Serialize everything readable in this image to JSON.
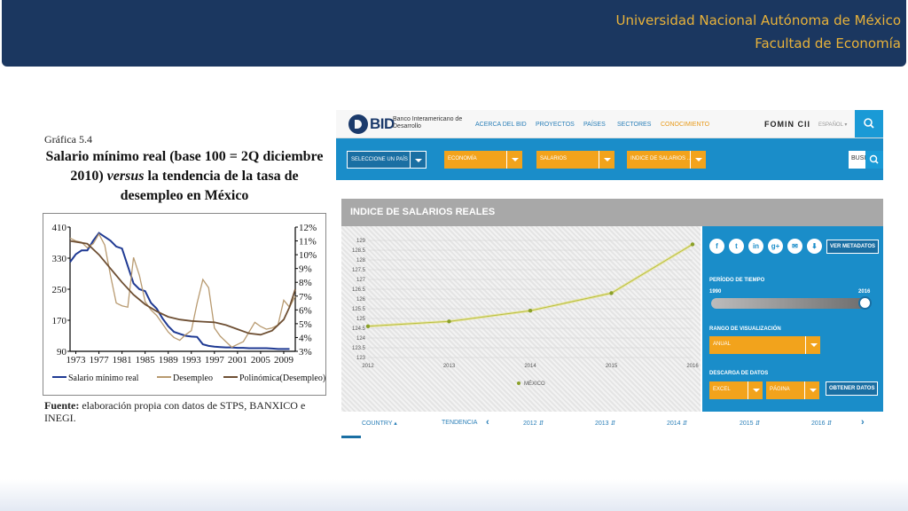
{
  "banner": {
    "line1": "Universidad Nacional Autónoma de México",
    "line2": "Facultad de Economía"
  },
  "figure": {
    "number": "Gráfica 5.4",
    "title_part1": "Salario mínimo real (base 100 = 2Q diciembre 2010)",
    "title_italic": "versus",
    "title_part2": "la tendencia de la tasa de desempleo en México",
    "source_label": "Fuente:",
    "source_text": "elaboración propia con datos de STPS, BANXICO e INEGI."
  },
  "chart_data": [
    {
      "type": "line",
      "x_ticks": [
        "1973",
        "1977",
        "1981",
        "1985",
        "1989",
        "1993",
        "1997",
        "2001",
        "2005",
        "2009"
      ],
      "y_left_ticks": [
        "410",
        "330",
        "250",
        "170",
        "90"
      ],
      "y_left_range": [
        90,
        410
      ],
      "y_right_ticks": [
        "12%",
        "11%",
        "10%",
        "9%",
        "8%",
        "7%",
        "6%",
        "5%",
        "4%",
        "3%"
      ],
      "y_right_range": [
        3,
        12
      ],
      "x_range": [
        1972,
        2011
      ],
      "series": [
        {
          "name": "Salario mínimo real",
          "axis": "left",
          "color": "#1f3a93",
          "points": [
            [
              1972,
              320
            ],
            [
              1973,
              340
            ],
            [
              1974,
              350
            ],
            [
              1975,
              350
            ],
            [
              1976,
              375
            ],
            [
              1977,
              395
            ],
            [
              1978,
              385
            ],
            [
              1979,
              375
            ],
            [
              1980,
              360
            ],
            [
              1981,
              355
            ],
            [
              1982,
              310
            ],
            [
              1983,
              265
            ],
            [
              1984,
              250
            ],
            [
              1985,
              245
            ],
            [
              1986,
              215
            ],
            [
              1987,
              200
            ],
            [
              1988,
              175
            ],
            [
              1989,
              155
            ],
            [
              1990,
              140
            ],
            [
              1991,
              135
            ],
            [
              1992,
              130
            ],
            [
              1993,
              128
            ],
            [
              1994,
              127
            ],
            [
              1995,
              108
            ],
            [
              1996,
              104
            ],
            [
              1997,
              102
            ],
            [
              1998,
              101
            ],
            [
              1999,
              100
            ],
            [
              2000,
              100
            ],
            [
              2001,
              99
            ],
            [
              2002,
              99
            ],
            [
              2003,
              98
            ],
            [
              2004,
              98
            ],
            [
              2005,
              98
            ],
            [
              2006,
              98
            ],
            [
              2007,
              97
            ],
            [
              2008,
              96
            ],
            [
              2009,
              96
            ],
            [
              2010,
              96
            ]
          ]
        },
        {
          "name": "Desempleo",
          "axis": "right",
          "color": "#b89a70",
          "points": [
            [
              1972,
              11.2
            ],
            [
              1973,
              11.0
            ],
            [
              1974,
              10.9
            ],
            [
              1975,
              10.5
            ],
            [
              1976,
              10.8
            ],
            [
              1977,
              11.5
            ],
            [
              1978,
              10.7
            ],
            [
              1979,
              8.5
            ],
            [
              1980,
              6.5
            ],
            [
              1981,
              6.3
            ],
            [
              1982,
              6.2
            ],
            [
              1983,
              9.8
            ],
            [
              1984,
              8.5
            ],
            [
              1985,
              6.6
            ],
            [
              1986,
              6.0
            ],
            [
              1987,
              5.6
            ],
            [
              1988,
              5.0
            ],
            [
              1989,
              4.4
            ],
            [
              1990,
              4.0
            ],
            [
              1991,
              3.8
            ],
            [
              1992,
              4.2
            ],
            [
              1993,
              4.5
            ],
            [
              1994,
              6.5
            ],
            [
              1995,
              8.2
            ],
            [
              1996,
              7.6
            ],
            [
              1997,
              4.7
            ],
            [
              1998,
              4.1
            ],
            [
              1999,
              3.7
            ],
            [
              2000,
              3.3
            ],
            [
              2001,
              3.5
            ],
            [
              2002,
              3.7
            ],
            [
              2003,
              4.4
            ],
            [
              2004,
              5.1
            ],
            [
              2005,
              4.8
            ],
            [
              2006,
              4.6
            ],
            [
              2007,
              4.7
            ],
            [
              2008,
              4.9
            ],
            [
              2009,
              6.7
            ],
            [
              2010,
              6.2
            ],
            [
              2011,
              7.0
            ]
          ]
        },
        {
          "name": "Polinómica(Desempleo)",
          "axis": "right",
          "color": "#6e4f33",
          "points": [
            [
              1972,
              11.0
            ],
            [
              1975,
              10.8
            ],
            [
              1977,
              10.0
            ],
            [
              1979,
              9.0
            ],
            [
              1981,
              8.0
            ],
            [
              1983,
              7.1
            ],
            [
              1985,
              6.4
            ],
            [
              1987,
              5.9
            ],
            [
              1989,
              5.5
            ],
            [
              1991,
              5.3
            ],
            [
              1993,
              5.2
            ],
            [
              1995,
              5.15
            ],
            [
              1997,
              5.1
            ],
            [
              1999,
              4.9
            ],
            [
              2001,
              4.6
            ],
            [
              2003,
              4.3
            ],
            [
              2005,
              4.2
            ],
            [
              2007,
              4.5
            ],
            [
              2009,
              5.3
            ],
            [
              2010,
              6.2
            ],
            [
              2011,
              7.5
            ]
          ]
        }
      ]
    },
    {
      "type": "line",
      "title": "INDICE DE SALARIOS REALES",
      "categories": [
        "2012",
        "2013",
        "2014",
        "2015",
        "2016"
      ],
      "y_ticks": [
        "129",
        "128.5",
        "128",
        "127.5",
        "127",
        "126.5",
        "126",
        "125.5",
        "125",
        "124.5",
        "124",
        "123.5",
        "123"
      ],
      "ylim": [
        123,
        129
      ],
      "series": [
        {
          "name": "MÉXICO",
          "color": "#b8c040",
          "values": [
            124.6,
            124.85,
            125.4,
            126.3,
            128.8
          ]
        }
      ]
    }
  ],
  "bid": {
    "logo_word": "BID",
    "logo_sub": "Banco Interamericano de Desarrollo",
    "nav": [
      "ACERCA DEL BID",
      "PROYECTOS",
      "PAÍSES",
      "SECTORES",
      "CONOCIMIENTO"
    ],
    "nav_active": "CONOCIMIENTO",
    "fomin": "FOMIN  CII",
    "lang": "ESPAÑOL ▾",
    "filters": {
      "country": "SELECCIONE UN PAÍS",
      "topic": "ECONOMÍA",
      "sub": "SALARIOS",
      "indicator": "INDICE DE SALARIOS ..."
    },
    "search_text": "BUSI",
    "panel_title": "INDICE DE SALARIOS REALES",
    "social_icons": [
      "f",
      "t",
      "in",
      "g+",
      "✉",
      "⬇"
    ],
    "metadata_btn": "VER METADATOS",
    "period_label": "PERÍODO DE TIEMPO",
    "period_start": "1990",
    "period_end": "2016",
    "range_label": "RANGO DE VISUALIZACIÓN",
    "range_value": "ANUAL",
    "download_label": "DESCARGA DE DATOS",
    "download_format": "EXCEL",
    "download_scope": "PÁGINA",
    "download_btn": "OBTENER DATOS",
    "tabs": [
      "COUNTRY ▴",
      "TENDENCIA",
      "2012 ⇵",
      "2013 ⇵",
      "2014 ⇵",
      "2015 ⇵",
      "2016 ⇵"
    ],
    "tab_prev": "‹",
    "tab_next": "›"
  }
}
